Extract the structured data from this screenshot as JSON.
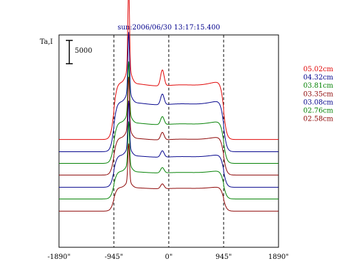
{
  "chart_data": {
    "type": "line",
    "title": "sun:2006/06/30 13:17:15.400",
    "ylabel": "Ta,I",
    "scale_bar": {
      "value": 5000,
      "label": "5000"
    },
    "x_ticks": [
      {
        "value": -1890,
        "label": "-1890\""
      },
      {
        "value": -945,
        "label": "-945\""
      },
      {
        "value": 0,
        "label": "0\""
      },
      {
        "value": 945,
        "label": "945\""
      },
      {
        "value": 1890,
        "label": "1890\""
      }
    ],
    "xlim": [
      -1890,
      1890
    ],
    "ylim": [
      0,
      40000
    ],
    "reference_lines": [
      -945,
      0,
      945
    ],
    "profile": {
      "limb_x": 945,
      "peak_x": -690,
      "bump_x": -110
    },
    "series": [
      {
        "name": "05.02cm",
        "color": "#e00000",
        "baseline": 20300,
        "disk": 10500,
        "peak": 16000,
        "bump": 3000
      },
      {
        "name": "04.32cm",
        "color": "#00008b",
        "baseline": 18000,
        "disk": 9200,
        "peak": 11500,
        "bump": 2000
      },
      {
        "name": "03.81cm",
        "color": "#008000",
        "baseline": 15800,
        "disk": 7600,
        "peak": 10000,
        "bump": 1500
      },
      {
        "name": "03.35cm",
        "color": "#8b0000",
        "baseline": 13600,
        "disk": 6900,
        "peak": 10000,
        "bump": 1400
      },
      {
        "name": "03.08cm",
        "color": "#00008b",
        "baseline": 11300,
        "disk": 5900,
        "peak": 9000,
        "bump": 1200
      },
      {
        "name": "02.76cm",
        "color": "#008000",
        "baseline": 9100,
        "disk": 5100,
        "peak": 8200,
        "bump": 1000
      },
      {
        "name": "02.58cm",
        "color": "#8b0000",
        "baseline": 6800,
        "disk": 4400,
        "peak": 7200,
        "bump": 900
      }
    ]
  }
}
